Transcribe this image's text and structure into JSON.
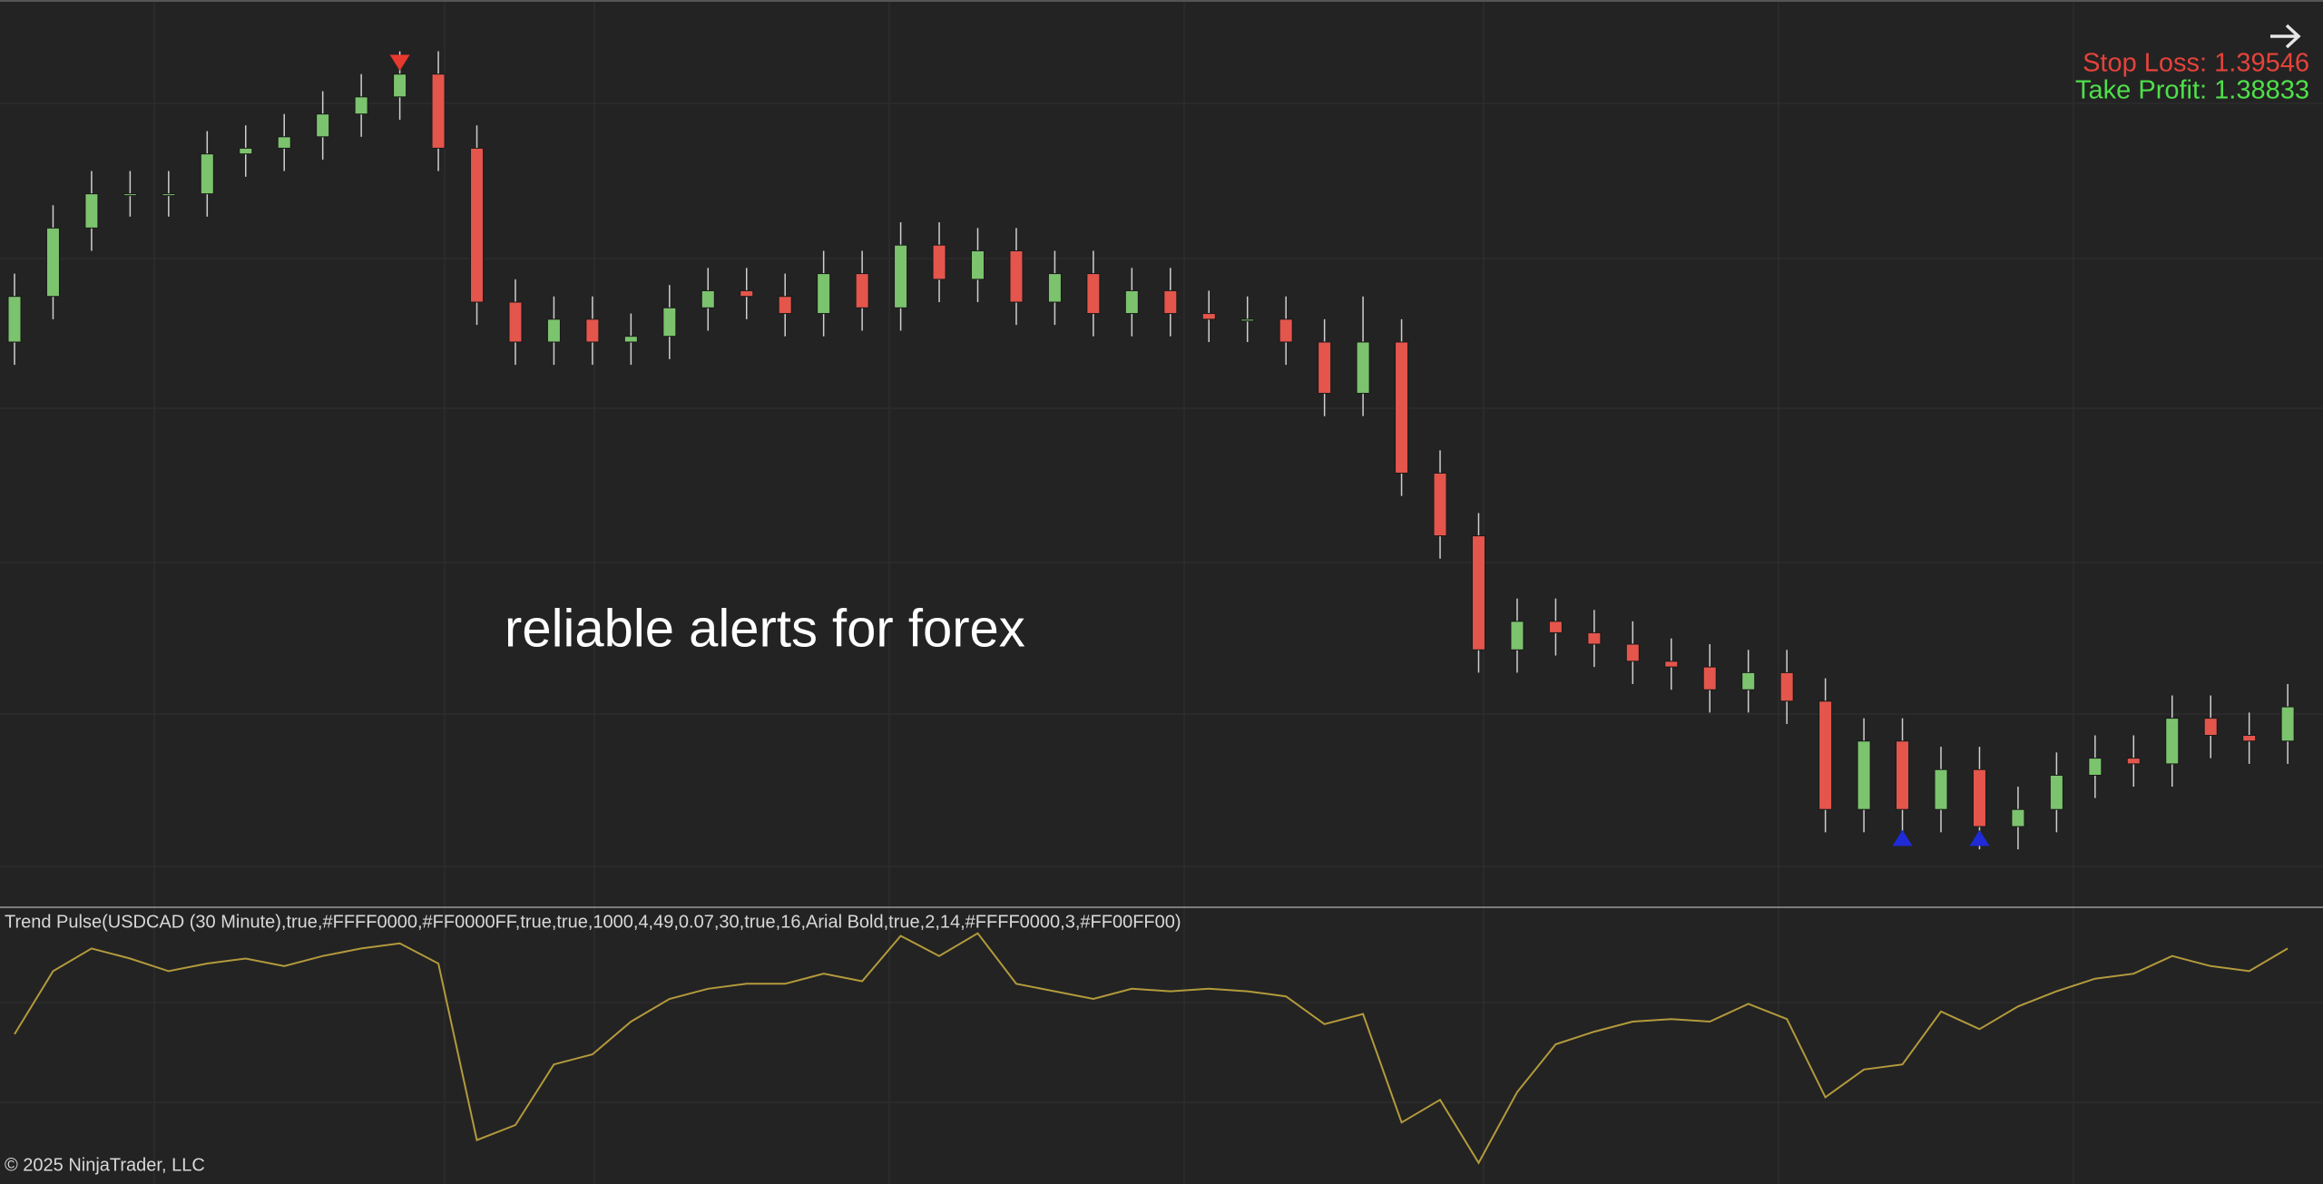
{
  "chart_data": {
    "type": "candlestick",
    "stop_loss": "Stop Loss: 1.39546",
    "take_profit": "Take Profit: 1.38833",
    "annotation": "reliable alerts for forex",
    "colors": {
      "up": "#7cc36e",
      "down": "#e4554b"
    },
    "ylim": [
      1.3841,
      1.4
    ],
    "open": [
      1.394,
      1.3948,
      1.396,
      1.3966,
      1.3966,
      1.3966,
      1.3973,
      1.3974,
      1.3976,
      1.398,
      1.3983,
      1.3987,
      1.3974,
      1.3947,
      1.394,
      1.3944,
      1.394,
      1.3941,
      1.3946,
      1.3949,
      1.3948,
      1.3945,
      1.3952,
      1.3946,
      1.3957,
      1.3951,
      1.3956,
      1.3947,
      1.3952,
      1.3945,
      1.3949,
      1.3945,
      1.3944,
      1.3944,
      1.394,
      1.3931,
      1.394,
      1.3917,
      1.3906,
      1.3886,
      1.3891,
      1.3889,
      1.3887,
      1.3884,
      1.3883,
      1.3879,
      1.3882,
      1.3877,
      1.3858,
      1.387,
      1.3858,
      1.3865,
      1.3855,
      1.3858,
      1.3864,
      1.3867,
      1.3866,
      1.3874,
      1.3871,
      1.387
    ],
    "high": [
      1.3952,
      1.3964,
      1.397,
      1.397,
      1.397,
      1.3977,
      1.3978,
      1.398,
      1.3984,
      1.3987,
      1.3991,
      1.3991,
      1.3978,
      1.3951,
      1.3948,
      1.3948,
      1.3945,
      1.395,
      1.3953,
      1.3953,
      1.3952,
      1.3956,
      1.3956,
      1.3961,
      1.3961,
      1.396,
      1.396,
      1.3956,
      1.3956,
      1.3953,
      1.3953,
      1.3949,
      1.3948,
      1.3948,
      1.3944,
      1.3948,
      1.3944,
      1.3921,
      1.391,
      1.3895,
      1.3895,
      1.3893,
      1.3891,
      1.3888,
      1.3887,
      1.3886,
      1.3886,
      1.3881,
      1.3874,
      1.3874,
      1.3869,
      1.3869,
      1.3862,
      1.3868,
      1.3871,
      1.3871,
      1.3878,
      1.3878,
      1.3875,
      1.388
    ],
    "low": [
      1.3936,
      1.3944,
      1.3956,
      1.3962,
      1.3962,
      1.3962,
      1.3969,
      1.397,
      1.3972,
      1.3976,
      1.3979,
      1.397,
      1.3943,
      1.3936,
      1.3936,
      1.3936,
      1.3936,
      1.3937,
      1.3942,
      1.3944,
      1.3941,
      1.3941,
      1.3942,
      1.3942,
      1.3947,
      1.3947,
      1.3943,
      1.3943,
      1.3941,
      1.3941,
      1.3941,
      1.394,
      1.394,
      1.3936,
      1.3927,
      1.3927,
      1.3913,
      1.3902,
      1.3882,
      1.3882,
      1.3885,
      1.3883,
      1.388,
      1.3879,
      1.3875,
      1.3875,
      1.3873,
      1.3854,
      1.3854,
      1.3854,
      1.3854,
      1.3851,
      1.3851,
      1.3854,
      1.386,
      1.3862,
      1.3862,
      1.3867,
      1.3866,
      1.3866
    ],
    "close": [
      1.3948,
      1.396,
      1.3966,
      1.3966,
      1.3966,
      1.3973,
      1.3974,
      1.3976,
      1.398,
      1.3983,
      1.3987,
      1.3974,
      1.3947,
      1.394,
      1.3944,
      1.394,
      1.3941,
      1.3946,
      1.3949,
      1.3948,
      1.3945,
      1.3952,
      1.3946,
      1.3957,
      1.3951,
      1.3956,
      1.3947,
      1.3952,
      1.3945,
      1.3949,
      1.3945,
      1.3944,
      1.3944,
      1.394,
      1.3931,
      1.394,
      1.3917,
      1.3906,
      1.3886,
      1.3891,
      1.3889,
      1.3887,
      1.3884,
      1.3883,
      1.3879,
      1.3882,
      1.3877,
      1.3858,
      1.387,
      1.3858,
      1.3865,
      1.3855,
      1.3858,
      1.3864,
      1.3867,
      1.3866,
      1.3874,
      1.3871,
      1.387,
      1.3876
    ],
    "markers": [
      {
        "candle": 10,
        "price": 1.3989,
        "direction": "sell",
        "color": "#e8392f"
      },
      {
        "candle": 49,
        "price": 1.3853,
        "direction": "buy",
        "color": "#1f2bd6"
      },
      {
        "candle": 51,
        "price": 1.3853,
        "direction": "buy",
        "color": "#1f2bd6"
      }
    ],
    "indicator": {
      "type": "line",
      "name": "Trend Pulse(USDCAD (30 Minute),true,#FFFF0000,#FF0000FF,true,true,1000,4,49,0.07,30,true,16,Arial Bold,true,2,14,#FFFF0000,3,#FF00FF00)",
      "color": "#b39a3c",
      "ylim": [
        0,
        100
      ],
      "values": [
        54,
        79,
        88,
        84,
        79,
        82,
        84,
        81,
        85,
        88,
        90,
        82,
        12,
        18,
        42,
        46,
        59,
        68,
        72,
        74,
        74,
        78,
        75,
        93,
        85,
        94,
        74,
        71,
        68,
        72,
        71,
        72,
        71,
        69,
        58,
        62,
        19,
        28,
        3,
        31,
        50,
        55,
        59,
        60,
        59,
        66,
        60,
        29,
        40,
        42,
        63,
        56,
        65,
        71,
        76,
        78,
        85,
        81,
        79,
        88
      ]
    },
    "copyright": "© 2025 NinjaTrader, LLC"
  }
}
